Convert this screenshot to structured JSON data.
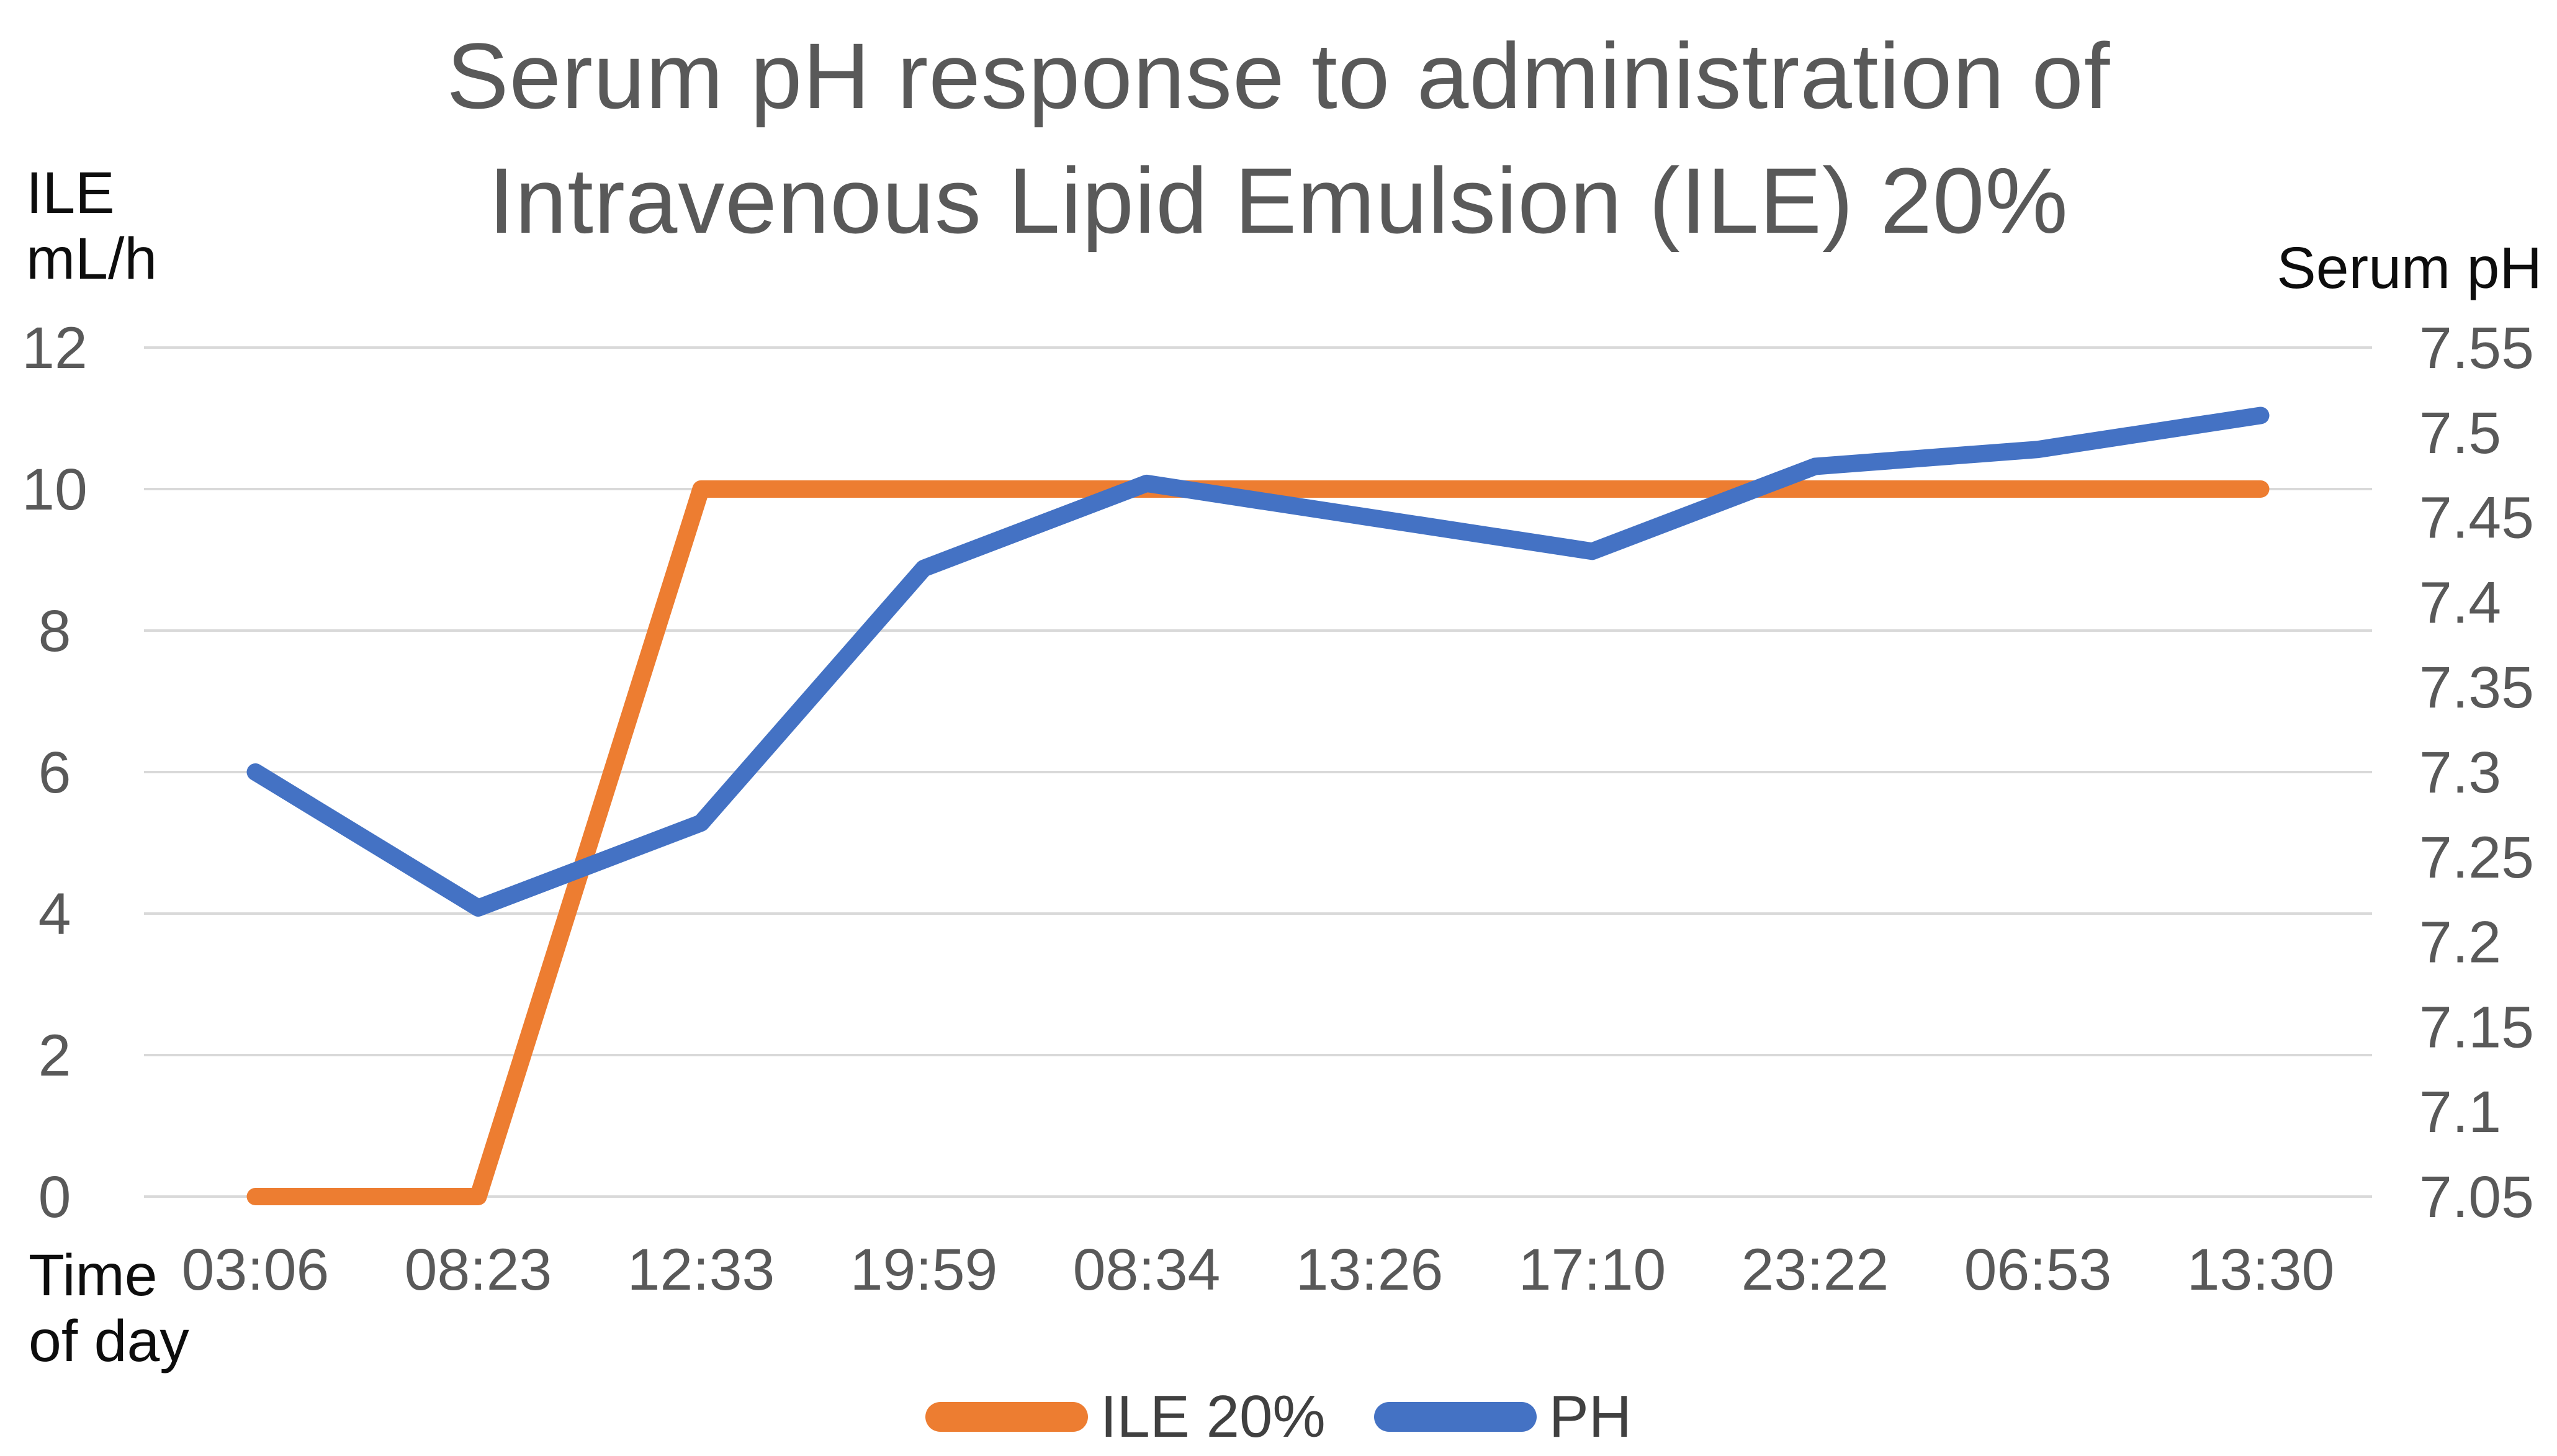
{
  "title": {
    "line1": "Serum pH response to administration of",
    "line2": "Intravenous Lipid Emulsion (ILE) 20%"
  },
  "left_axis_title": {
    "line1": "ILE",
    "line2": "mL/h"
  },
  "right_axis_title": "Serum pH",
  "x_axis_title": {
    "line1": "Time",
    "line2": "of day"
  },
  "legend": {
    "items": [
      {
        "label": "ILE 20%",
        "color": "#ED7D31"
      },
      {
        "label": "PH",
        "color": "#4472C4"
      }
    ]
  },
  "chart_data": {
    "type": "line",
    "title": "Serum pH response to administration of Intravenous Lipid Emulsion (ILE) 20%",
    "categories": [
      "03:06",
      "08:23",
      "12:33",
      "19:59",
      "08:34",
      "13:26",
      "17:10",
      "23:22",
      "06:53",
      "13:30"
    ],
    "xlabel": "Time of day",
    "series": [
      {
        "name": "ILE 20%",
        "axis": "left",
        "color": "#ED7D31",
        "values": [
          0,
          0,
          10,
          10,
          10,
          10,
          10,
          10,
          10,
          10
        ]
      },
      {
        "name": "PH",
        "axis": "right",
        "color": "#4472C4",
        "values": [
          7.3,
          7.22,
          7.27,
          7.42,
          7.47,
          7.45,
          7.43,
          7.48,
          7.49,
          7.51
        ]
      }
    ],
    "left_axis": {
      "title": "ILE mL/h",
      "min": 0,
      "max": 12,
      "ticks": [
        12,
        10,
        8,
        6,
        4,
        2,
        0
      ]
    },
    "right_axis": {
      "title": "Serum pH",
      "min": 7.05,
      "max": 7.55,
      "ticks": [
        7.55,
        7.5,
        7.45,
        7.4,
        7.35,
        7.3,
        7.25,
        7.2,
        7.15,
        7.1,
        7.05
      ]
    },
    "gridlines": "horizontal-left-ticks",
    "legend_position": "bottom",
    "line_width": 28,
    "colors": {
      "gridline": "#D9D9D9",
      "tick_label": "#595959",
      "axis_title": "#0d0d0d",
      "title": "#595959",
      "legend_text": "#404040"
    }
  }
}
